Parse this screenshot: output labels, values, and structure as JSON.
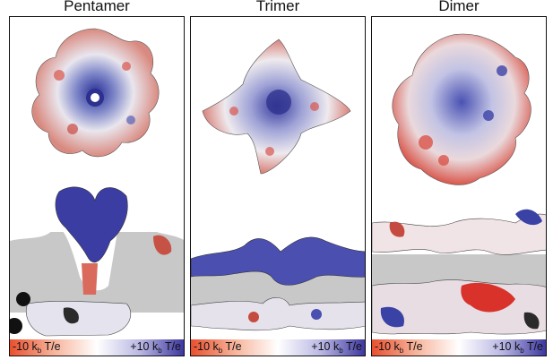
{
  "panels": [
    {
      "title": "Pentamer",
      "scale_low": "-10 k",
      "scale_low_sub": "b",
      "scale_low_unit": "T/e",
      "scale_high": "+10 k",
      "scale_high_sub": "b",
      "scale_high_unit": "T/e"
    },
    {
      "title": "Trimer",
      "scale_low": "-10 k",
      "scale_low_sub": "b",
      "scale_low_unit": "T/e",
      "scale_high": "+10 k",
      "scale_high_sub": "b",
      "scale_high_unit": "T/e"
    },
    {
      "title": "Dimer",
      "scale_low": "-10 k",
      "scale_low_sub": "b",
      "scale_low_unit": "T/e",
      "scale_high": "+10 k",
      "scale_high_sub": "b",
      "scale_high_unit": "T/e"
    }
  ],
  "colors": {
    "negative": "#e8502f",
    "neutral": "#ffffff",
    "positive": "#3d37a0",
    "membrane": "#c8c8c8",
    "frame": "#111111"
  }
}
